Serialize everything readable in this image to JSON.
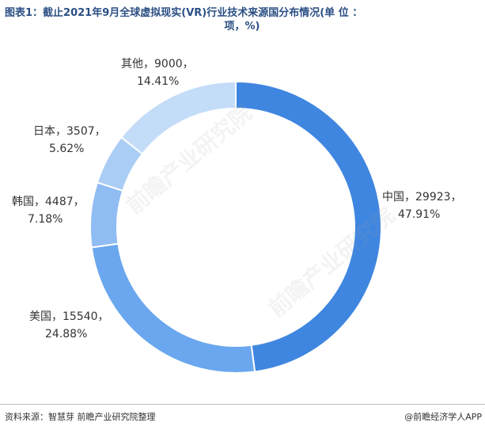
{
  "title_line1": "图表1：截止2021年9月全球虚拟现实(VR)行业技术来源国分布情况(单 位 ：",
  "title_line2": "项，%)",
  "watermark_text": "前瞻产业研究院",
  "footer": {
    "source": "资料来源：智慧芽 前瞻产业研究院整理",
    "brand": "@前瞻经济学人APP"
  },
  "chart_data": {
    "type": "pie",
    "donut": true,
    "title": "",
    "legend": "none",
    "slices": [
      {
        "label": "中国",
        "value": 29923,
        "percent": "47.91%",
        "value_label": "中国，29923，",
        "percent_label": "47.91%",
        "color": "#3f86e0"
      },
      {
        "label": "美国",
        "value": 15540,
        "percent": "24.88%",
        "value_label": "美国，15540，",
        "percent_label": "24.88%",
        "color": "#6aa7ee"
      },
      {
        "label": "韩国",
        "value": 4487,
        "percent": "7.18%",
        "value_label": "韩国，4487，",
        "percent_label": "7.18%",
        "color": "#8fbcf2"
      },
      {
        "label": "日本",
        "value": 3507,
        "percent": "5.62%",
        "value_label": "日本，3507，",
        "percent_label": "5.62%",
        "color": "#a9cdf5"
      },
      {
        "label": "其他",
        "value": 9000,
        "percent": "14.41%",
        "value_label": "其他，9000，",
        "percent_label": "14.41%",
        "color": "#c3dcf8"
      }
    ]
  }
}
